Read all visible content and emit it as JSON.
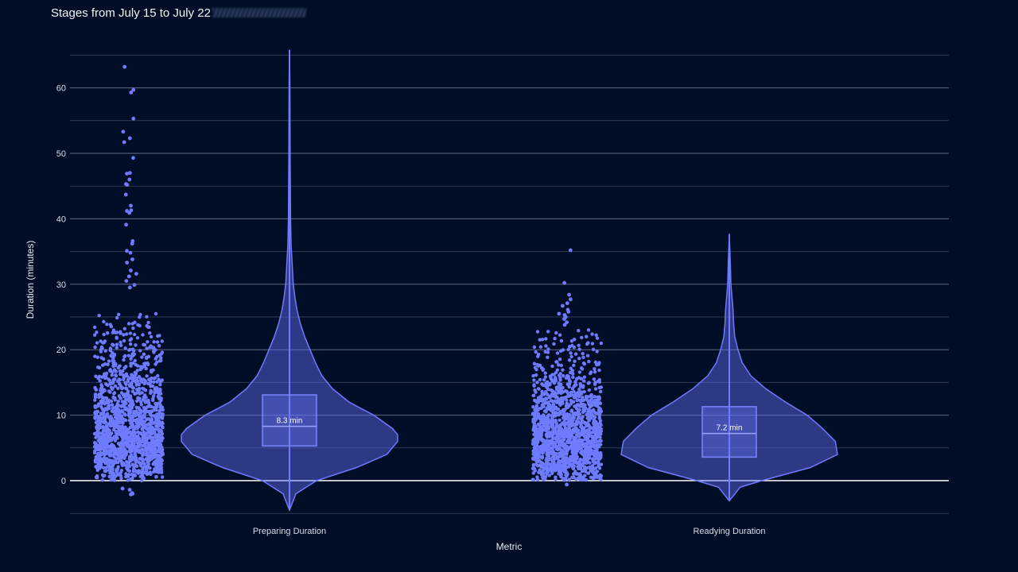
{
  "title": "Stages from July 15 to July 22",
  "chart_data": {
    "type": "violin",
    "xlabel": "Metric",
    "ylabel": "Duration (minutes)",
    "ylim": [
      -5,
      66
    ],
    "yticks": [
      0,
      10,
      20,
      30,
      40,
      50,
      60
    ],
    "grid": true,
    "categories": [
      "Preparing Duration",
      "Readying Duration"
    ],
    "series": [
      {
        "category": "Preparing Duration",
        "min": -4.5,
        "q1": 5.3,
        "median": 8.3,
        "q3": 13.1,
        "upper_fence": 24.5,
        "max": 65.8,
        "median_label": "8.3 min",
        "density": [
          [
            -4.5,
            0
          ],
          [
            -2,
            0.06
          ],
          [
            0,
            0.25
          ],
          [
            2,
            0.62
          ],
          [
            4,
            0.9
          ],
          [
            6,
            1.0
          ],
          [
            7,
            1.0
          ],
          [
            8,
            0.95
          ],
          [
            10,
            0.78
          ],
          [
            12,
            0.55
          ],
          [
            14,
            0.4
          ],
          [
            16,
            0.3
          ],
          [
            18,
            0.24
          ],
          [
            20,
            0.19
          ],
          [
            22,
            0.14
          ],
          [
            24,
            0.1
          ],
          [
            26,
            0.07
          ],
          [
            28,
            0.05
          ],
          [
            30,
            0.035
          ],
          [
            33,
            0.025
          ],
          [
            36,
            0.015
          ],
          [
            40,
            0.01
          ],
          [
            45,
            0.008
          ],
          [
            50,
            0.006
          ],
          [
            55,
            0.005
          ],
          [
            60,
            0.004
          ],
          [
            65.8,
            0
          ]
        ],
        "outliers": [
          63.2,
          59.7,
          59.3,
          55.3,
          53.3,
          52.3,
          51.7,
          49.3,
          47.0,
          46.9,
          46.0,
          45.3,
          45.2,
          43.7,
          42.0,
          41.3,
          41.2,
          40.9,
          39.1,
          36.6,
          36.2,
          35.1,
          34.8,
          33.8,
          33.3,
          32.1,
          31.6,
          31.2,
          30.5,
          29.9,
          29.5,
          -1.2,
          -1.4,
          -1.9,
          -2.0,
          -2.1
        ]
      },
      {
        "category": "Readying Duration",
        "min": -3.1,
        "q1": 3.6,
        "median": 7.2,
        "q3": 11.3,
        "upper_fence": 22.2,
        "max": 37.7,
        "median_label": "7.2 min",
        "density": [
          [
            -3.1,
            0
          ],
          [
            -1,
            0.1
          ],
          [
            0,
            0.3
          ],
          [
            2,
            0.75
          ],
          [
            4,
            1.0
          ],
          [
            6,
            0.98
          ],
          [
            8,
            0.86
          ],
          [
            10,
            0.72
          ],
          [
            12,
            0.52
          ],
          [
            14,
            0.34
          ],
          [
            16,
            0.2
          ],
          [
            18,
            0.12
          ],
          [
            20,
            0.08
          ],
          [
            22,
            0.05
          ],
          [
            24,
            0.04
          ],
          [
            26,
            0.035
          ],
          [
            28,
            0.025
          ],
          [
            30,
            0.015
          ],
          [
            33,
            0.01
          ],
          [
            37.7,
            0
          ]
        ],
        "outliers": [
          35.2,
          30.2,
          28.4,
          27.7,
          27.1,
          26.7,
          26.1,
          25.8,
          25.5,
          25.3,
          25.0,
          24.7,
          24.2,
          23.8,
          -0.6
        ]
      }
    ]
  }
}
